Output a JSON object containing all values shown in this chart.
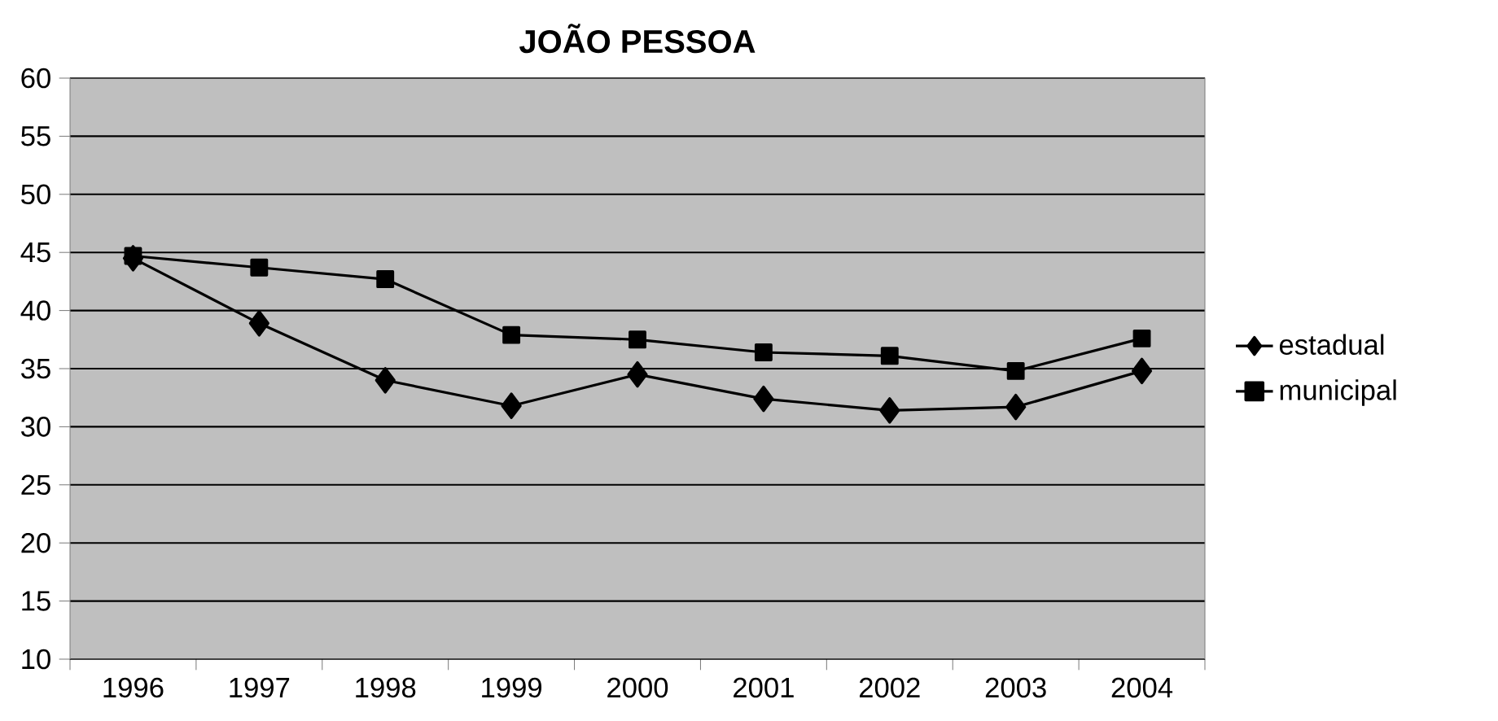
{
  "chart_data": {
    "type": "line",
    "title": "JOÃO PESSOA",
    "categories": [
      "1996",
      "1997",
      "1998",
      "1999",
      "2000",
      "2001",
      "2002",
      "2003",
      "2004"
    ],
    "series": [
      {
        "name": "estadual",
        "color": "#000000",
        "marker": "diamond",
        "values": [
          44.5,
          38.9,
          34.0,
          31.8,
          34.5,
          32.4,
          31.4,
          31.7,
          34.8
        ]
      },
      {
        "name": "municipal",
        "color": "#000000",
        "marker": "square",
        "values": [
          44.7,
          43.7,
          42.7,
          37.9,
          37.5,
          36.4,
          36.1,
          34.8,
          37.6
        ]
      }
    ],
    "ylim": [
      10,
      60
    ],
    "yticks": [
      10,
      15,
      20,
      25,
      30,
      35,
      40,
      45,
      50,
      55,
      60
    ],
    "grid": "y",
    "legend": "right",
    "line_style": "solid"
  }
}
